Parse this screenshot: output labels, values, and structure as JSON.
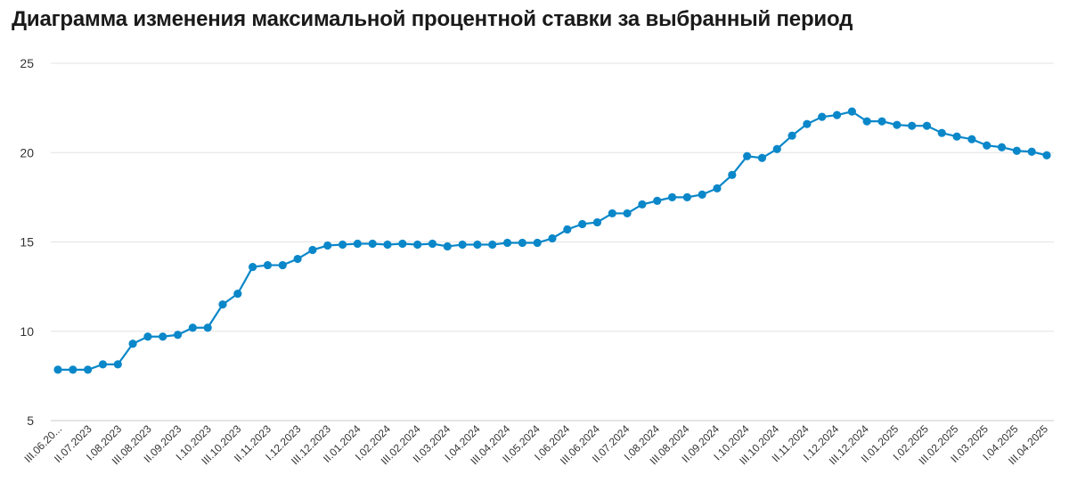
{
  "chart_data": {
    "type": "line",
    "title": "Диаграмма изменения максимальной процентной ставки за выбранный период",
    "color": "#0a87c9",
    "grid": true,
    "ylim": [
      5,
      25
    ],
    "yticks": [
      5,
      10,
      15,
      20,
      25
    ],
    "xlabels": [
      "III.06.20...",
      "II.07.2023",
      "I.08.2023",
      "III.08.2023",
      "II.09.2023",
      "I.10.2023",
      "III.10.2023",
      "II.11.2023",
      "I.12.2023",
      "III.12.2023",
      "II.01.2024",
      "I.02.2024",
      "III.02.2024",
      "II.03.2024",
      "I.04.2024",
      "III.04.2024",
      "II.05.2024",
      "I.06.2024",
      "III.06.2024",
      "II.07.2024",
      "I.08.2024",
      "III.08.2024",
      "II.09.2024",
      "I.10.2024",
      "III.10.2024",
      "II.11.2024",
      "I.12.2024",
      "III.12.2024",
      "II.01.2025",
      "I.02.2025",
      "III.02.2025",
      "II.03.2025",
      "I.04.2025",
      "III.04.2025"
    ],
    "values": [
      7.85,
      7.85,
      7.85,
      8.15,
      8.15,
      9.3,
      9.7,
      9.7,
      9.8,
      10.2,
      10.2,
      11.5,
      12.1,
      13.6,
      13.7,
      13.7,
      14.05,
      14.55,
      14.8,
      14.85,
      14.9,
      14.9,
      14.85,
      14.9,
      14.85,
      14.9,
      14.75,
      14.85,
      14.85,
      14.85,
      14.95,
      14.95,
      14.95,
      15.2,
      15.7,
      16.0,
      16.1,
      16.6,
      16.6,
      17.1,
      17.3,
      17.5,
      17.5,
      17.65,
      18.0,
      18.75,
      19.8,
      19.7,
      20.2,
      20.95,
      21.6,
      22.0,
      22.1,
      22.3,
      21.75,
      21.75,
      21.55,
      21.5,
      21.5,
      21.1,
      20.9,
      20.75,
      20.4,
      20.3,
      20.1,
      20.05,
      19.85
    ]
  }
}
